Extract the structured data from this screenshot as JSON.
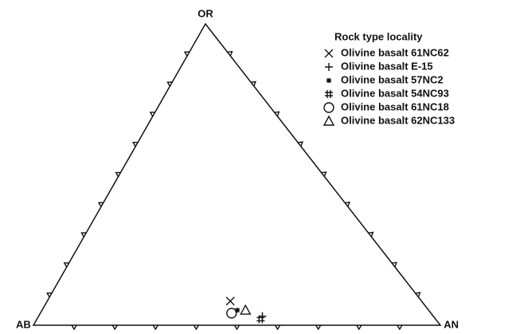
{
  "chart_data": {
    "type": "ternary",
    "components": [
      "AB",
      "AN",
      "OR"
    ],
    "ticks": [
      10,
      20,
      30,
      40,
      50,
      60,
      70,
      80,
      90
    ],
    "scale": 100,
    "legend_title": "Rock type locality",
    "series": [
      {
        "name": "Olivine basalt 61NC62",
        "marker": "x",
        "values": [
          47,
          45,
          8
        ]
      },
      {
        "name": "Olivine basalt E-15",
        "marker": "+",
        "values": [
          42,
          55,
          3
        ]
      },
      {
        "name": "Olivine basalt 57NC2",
        "marker": "*",
        "values": [
          47,
          48,
          5
        ]
      },
      {
        "name": "Olivine basalt 54NC93",
        "marker": "#",
        "values": [
          43,
          55,
          2
        ]
      },
      {
        "name": "Olivine basalt 61NC18",
        "marker": "circle",
        "values": [
          49,
          47,
          4
        ]
      },
      {
        "name": "Olivine basalt 62NC133",
        "marker": "triangle",
        "values": [
          45,
          50,
          5
        ]
      }
    ]
  }
}
